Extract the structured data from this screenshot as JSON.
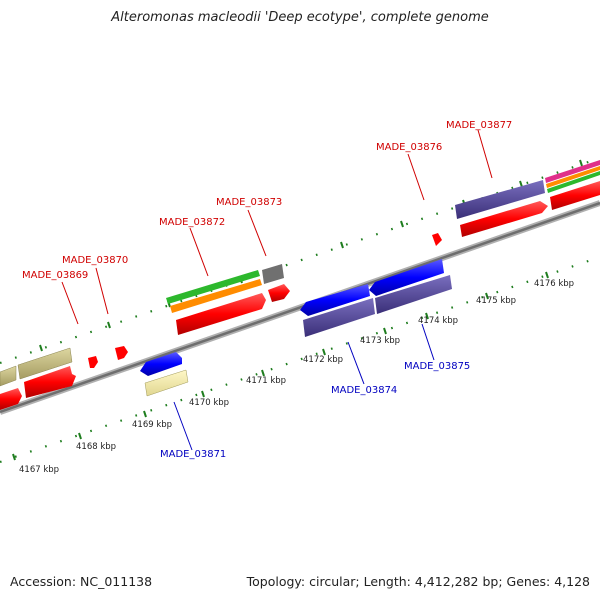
{
  "title": "Alteromonas macleodii 'Deep ecotype', complete genome",
  "footer": {
    "accession": "Accession: NC_011138",
    "summary": "Topology: circular; Length: 4,412,282 bp; Genes: 4,128"
  },
  "ticks": [
    "4167 kbp",
    "4168 kbp",
    "4169 kbp",
    "4170 kbp",
    "4171 kbp",
    "4172 kbp",
    "4173 kbp",
    "4174 kbp",
    "4175 kbp",
    "4176 kbp"
  ],
  "genes_top": [
    "MADE_03869",
    "MADE_03870",
    "MADE_03872",
    "MADE_03873",
    "MADE_03876",
    "MADE_03877"
  ],
  "genes_bottom": [
    "MADE_03871",
    "MADE_03874",
    "MADE_03875"
  ],
  "colors": {
    "forward": "#ff0000",
    "reverse": "#0000ff",
    "backbone": "#808080",
    "tick_green": "#1e7d1e",
    "olive": "#c8bf80",
    "purple": "#4b3f8f"
  }
}
